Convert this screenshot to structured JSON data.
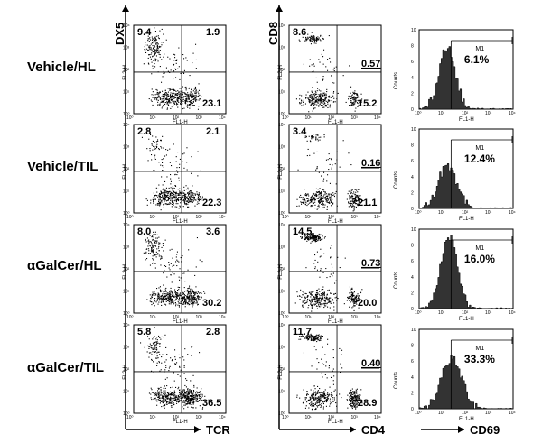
{
  "figure": {
    "row_labels": [
      "Vehicle/HL",
      "Vehicle/TIL",
      "αGalCer/HL",
      "αGalCer/TIL"
    ],
    "axis_labels": {
      "dx5": "DX5",
      "tcr": "TCR",
      "cd8": "CD8",
      "cd4": "CD4",
      "cd69": "CD69"
    },
    "plot_axis_text": {
      "fl2": "FL2-H",
      "fl1": "FL1-H",
      "counts": "Counts",
      "marker": "M1",
      "log_ticks": [
        "10⁰",
        "10¹",
        "10²",
        "10³",
        "10⁴"
      ],
      "count_ticks": [
        "0",
        "2",
        "4",
        "6",
        "8",
        "10"
      ]
    },
    "rows": [
      {
        "dx5_tcr": {
          "ul": "9.4",
          "ur": "1.9",
          "lr": "23.1"
        },
        "cd8_cd4": {
          "ul": "8.6",
          "ur": "0.57",
          "lr": "15.2"
        },
        "cd69": {
          "pct": "6.1%",
          "peak_decade": 1.15,
          "height": 7.8,
          "spread": 0.35
        }
      },
      {
        "dx5_tcr": {
          "ul": "2.8",
          "ur": "2.1",
          "lr": "22.3"
        },
        "cd8_cd4": {
          "ul": "3.4",
          "ur": "0.16",
          "lr": "21.1"
        },
        "cd69": {
          "pct": "12.4%",
          "peak_decade": 1.15,
          "height": 5.2,
          "spread": 0.4
        }
      },
      {
        "dx5_tcr": {
          "ul": "8.0",
          "ur": "3.6",
          "lr": "30.2"
        },
        "cd8_cd4": {
          "ul": "14.5",
          "ur": "0.73",
          "lr": "20.0"
        },
        "cd69": {
          "pct": "16.0%",
          "peak_decade": 1.25,
          "height": 9.2,
          "spread": 0.35
        }
      },
      {
        "dx5_tcr": {
          "ul": "5.8",
          "ur": "2.8",
          "lr": "36.5"
        },
        "cd8_cd4": {
          "ul": "11.7",
          "ur": "0.40",
          "lr": "28.9"
        },
        "cd69": {
          "pct": "33.3%",
          "peak_decade": 1.35,
          "height": 6.2,
          "spread": 0.45
        }
      }
    ]
  }
}
